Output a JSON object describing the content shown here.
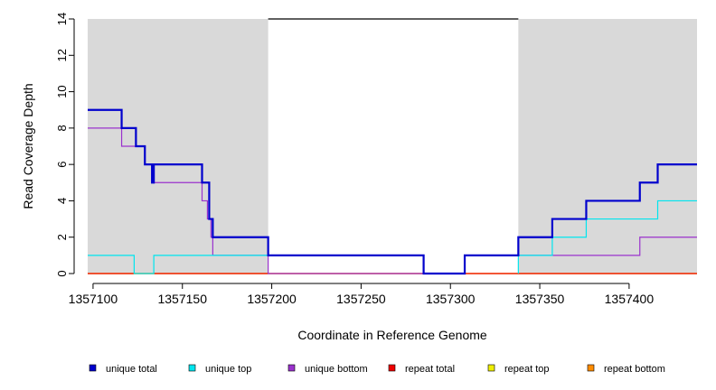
{
  "chart_data": {
    "type": "line",
    "title": "",
    "xlabel": "Coordinate in Reference Genome",
    "ylabel": "Read Coverage Depth",
    "xlim": [
      1357097,
      1357438
    ],
    "ylim": [
      0,
      14
    ],
    "x_ticks": [
      1357100,
      1357150,
      1357200,
      1357250,
      1357300,
      1357350,
      1357400
    ],
    "y_ticks": [
      0,
      2,
      4,
      6,
      8,
      10,
      12,
      14
    ],
    "shaded_regions": [
      [
        1357097,
        1357198
      ],
      [
        1357338,
        1357438
      ]
    ],
    "region_top_value": 14,
    "legend_position": "bottom",
    "series": [
      {
        "name": "unique total",
        "color": "#0000CD",
        "points": [
          [
            1357097,
            9
          ],
          [
            1357116,
            8
          ],
          [
            1357124,
            7
          ],
          [
            1357129,
            6
          ],
          [
            1357133,
            5
          ],
          [
            1357134,
            6
          ],
          [
            1357161,
            5
          ],
          [
            1357165,
            3
          ],
          [
            1357167,
            2
          ],
          [
            1357198,
            1
          ],
          [
            1357285,
            0
          ],
          [
            1357308,
            1
          ],
          [
            1357338,
            2
          ],
          [
            1357357,
            3
          ],
          [
            1357376,
            4
          ],
          [
            1357406,
            5
          ],
          [
            1357416,
            6
          ],
          [
            1357438,
            6
          ]
        ]
      },
      {
        "name": "unique top",
        "color": "#00E5EE",
        "points": [
          [
            1357097,
            1
          ],
          [
            1357123,
            0
          ],
          [
            1357134,
            1
          ],
          [
            1357198,
            1
          ],
          [
            1357285,
            0
          ],
          [
            1357308,
            1
          ],
          [
            1357338,
            0
          ],
          [
            1357338,
            1
          ],
          [
            1357357,
            2
          ],
          [
            1357376,
            3
          ],
          [
            1357416,
            4
          ],
          [
            1357438,
            4
          ]
        ]
      },
      {
        "name": "unique bottom",
        "color": "#9A32CD",
        "points": [
          [
            1357097,
            8
          ],
          [
            1357116,
            7
          ],
          [
            1357129,
            6
          ],
          [
            1357134,
            5
          ],
          [
            1357161,
            4
          ],
          [
            1357164,
            3
          ],
          [
            1357166,
            2
          ],
          [
            1357167,
            1
          ],
          [
            1357198,
            0
          ],
          [
            1357308,
            1
          ],
          [
            1357406,
            2
          ],
          [
            1357438,
            2
          ]
        ]
      },
      {
        "name": "repeat total",
        "color": "#EE0000",
        "points": [
          [
            1357097,
            0
          ],
          [
            1357438,
            0
          ]
        ]
      },
      {
        "name": "repeat top",
        "color": "#EEEE00",
        "points": [
          [
            1357097,
            0
          ],
          [
            1357438,
            0
          ]
        ]
      },
      {
        "name": "repeat bottom",
        "color": "#FF8C00",
        "points": [
          [
            1357097,
            0
          ],
          [
            1357438,
            0
          ]
        ]
      }
    ]
  }
}
